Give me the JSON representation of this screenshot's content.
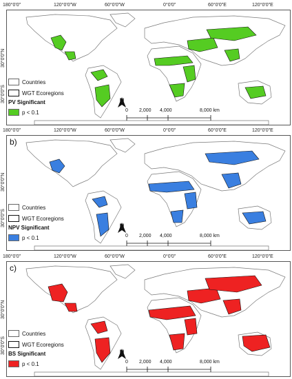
{
  "ticks": {
    "lon": [
      "180°0'0\"",
      "120°0'0\"W",
      "60°0'0\"W",
      "0°0'0\"",
      "60°0'0\"E",
      "120°0'0\"E"
    ],
    "lat": [
      "30°0'0\"N",
      "30°0'0\"S"
    ]
  },
  "legend": {
    "countries": "Countries",
    "ecoregions": "WGT Ecoregions",
    "threshold": "p < 0.1"
  },
  "north": "N",
  "scale": [
    "0",
    "2,000",
    "4,000",
    "8,000 km"
  ],
  "panels": [
    {
      "label": "",
      "title": "PV Significant",
      "color": "#55cc22"
    },
    {
      "label": "b)",
      "title": "NPV Significant",
      "color": "#3a7fe0"
    },
    {
      "label": "c)",
      "title": "BS Significant",
      "color": "#ee2222"
    }
  ]
}
